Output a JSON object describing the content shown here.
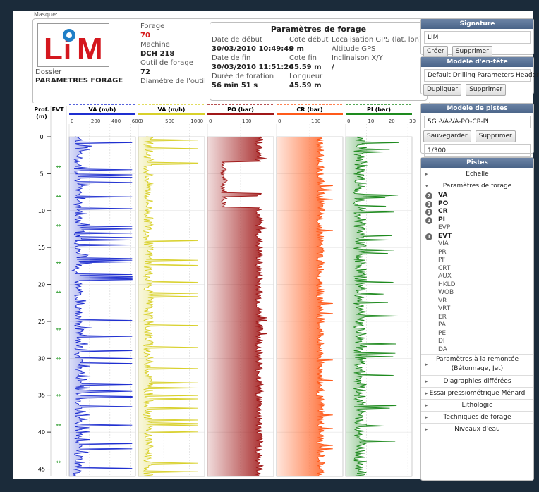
{
  "cut_label": "Masque:",
  "header": {
    "logo_text": "LiM",
    "dossier_label": "Dossier",
    "dossier_value": "PARAMETRES FORAGE",
    "forage_label": "Forage",
    "forage_value": "70",
    "machine_label": "Machine",
    "machine_value": "DCH 218",
    "outil_label": "Outil de forage",
    "outil_value": "72",
    "diametre_label": "Diamètre de l'outil"
  },
  "params": {
    "title": "Paramètres de forage",
    "date_debut_label": "Date de début",
    "date_debut_value": "30/03/2010 10:49:49",
    "date_fin_label": "Date de fin",
    "date_fin_value": "30/03/2010 11:51:26",
    "duree_label": "Durée de foration",
    "duree_value": "56 min 51 s",
    "cote_debut_label": "Cote début",
    "cote_debut_value": "0 m",
    "cote_fin_label": "Cote fin",
    "cote_fin_value": "45.59 m",
    "longueur_label": "Longueur",
    "longueur_value": "45.59 m",
    "gps_label": "Localisation GPS (lat, lon)",
    "altitude_label": "Altitude GPS",
    "inclinaison_label": "Inclinaison X/Y",
    "inclinaison_value": "/"
  },
  "signature": {
    "title": "Signature",
    "value": "LIM",
    "create": "Créer",
    "delete": "Supprimer"
  },
  "entete": {
    "title": "Modèle d'en-tête",
    "value": "Default Drilling Parameters Header",
    "duplicate": "Dupliquer",
    "delete": "Supprimer"
  },
  "pistes_model": {
    "title": "Modèle de pistes",
    "value": "5G -VA-VA-PO-CR-PI",
    "save": "Sauvegarder",
    "delete": "Supprimer",
    "scale": "1/300"
  },
  "pistes": {
    "title": "Pistes",
    "sections_top": [
      {
        "label": "Echelle",
        "arrow": "▸"
      },
      {
        "label": "Paramètres de forage",
        "arrow": "▾"
      }
    ],
    "items": [
      {
        "label": "VA",
        "badge": "2"
      },
      {
        "label": "PO",
        "badge": "1"
      },
      {
        "label": "CR",
        "badge": "1"
      },
      {
        "label": "PI",
        "badge": "1"
      },
      {
        "label": "EVP",
        "badge": ""
      },
      {
        "label": "EVT",
        "badge": "1"
      },
      {
        "label": "VIA",
        "badge": ""
      },
      {
        "label": "PR",
        "badge": ""
      },
      {
        "label": "PF",
        "badge": ""
      },
      {
        "label": "CRT",
        "badge": ""
      },
      {
        "label": "AUX",
        "badge": ""
      },
      {
        "label": "HKLD",
        "badge": ""
      },
      {
        "label": "WOB",
        "badge": ""
      },
      {
        "label": "VR",
        "badge": ""
      },
      {
        "label": "VRT",
        "badge": ""
      },
      {
        "label": "ER",
        "badge": ""
      },
      {
        "label": "PA",
        "badge": ""
      },
      {
        "label": "PE",
        "badge": ""
      },
      {
        "label": "DI",
        "badge": ""
      },
      {
        "label": "DA",
        "badge": ""
      }
    ],
    "sections_bottom": [
      {
        "line1": "Paramètres à la remontée",
        "line2": "(Bétonnage, Jet)"
      },
      {
        "line1": "Diagraphies différées"
      },
      {
        "line1": "Essai pressiométrique Ménard"
      },
      {
        "line1": "Lithologie"
      },
      {
        "line1": "Techniques de forage"
      },
      {
        "line1": "Niveaux d'eau"
      }
    ]
  },
  "chart_data": {
    "type": "line",
    "depth_label": "Prof. (m)",
    "evt_label": "EVT",
    "depth_ticks": [
      0,
      5,
      10,
      15,
      20,
      25,
      30,
      35,
      40,
      45
    ],
    "ylim": [
      0,
      46
    ],
    "evt_depths": [
      4,
      8,
      12,
      17,
      21,
      26,
      30,
      35,
      39,
      44
    ],
    "tracks": [
      {
        "name": "VA (m/h)",
        "color": "#1f2fd0",
        "ticks": [
          "0",
          "200",
          "400",
          "600"
        ],
        "xlim": [
          0,
          650
        ]
      },
      {
        "name": "VA (m/h)",
        "color": "#d8d02a",
        "ticks": [
          "0",
          "500",
          "1000"
        ],
        "xlim": [
          0,
          1300
        ]
      },
      {
        "name": "PO (bar)",
        "color": "#a01818",
        "ticks": [
          "0",
          "100"
        ],
        "xlim": [
          0,
          200
        ]
      },
      {
        "name": "CR (bar)",
        "color": "#ff5a1a",
        "ticks": [
          "0",
          "100"
        ],
        "xlim": [
          0,
          200
        ]
      },
      {
        "name": "PI (bar)",
        "color": "#1e8a1e",
        "ticks": [
          "0",
          "10",
          "20",
          "30"
        ],
        "xlim": [
          0,
          32
        ]
      }
    ]
  }
}
